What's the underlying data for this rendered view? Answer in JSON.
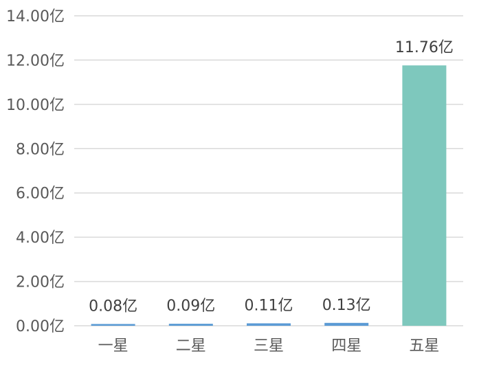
{
  "chart_data": {
    "type": "bar",
    "title": "",
    "xlabel": "",
    "ylabel": "",
    "categories": [
      "一星",
      "二星",
      "三星",
      "四星",
      "五星"
    ],
    "values": [
      0.08,
      0.09,
      0.11,
      0.13,
      11.76
    ],
    "data_labels": [
      "0.08亿",
      "0.09亿",
      "0.11亿",
      "0.13亿",
      "11.76亿"
    ],
    "bar_colors": [
      "#5b9bd5",
      "#5b9bd5",
      "#5b9bd5",
      "#5b9bd5",
      "#7ec8bd"
    ],
    "ylim": [
      0,
      14
    ],
    "y_ticks": [
      0,
      2,
      4,
      6,
      8,
      10,
      12,
      14
    ],
    "y_tick_labels": [
      "0.00亿",
      "2.00亿",
      "4.00亿",
      "6.00亿",
      "8.00亿",
      "10.00亿",
      "12.00亿",
      "14.00亿"
    ],
    "grid": true,
    "legend": "none"
  }
}
